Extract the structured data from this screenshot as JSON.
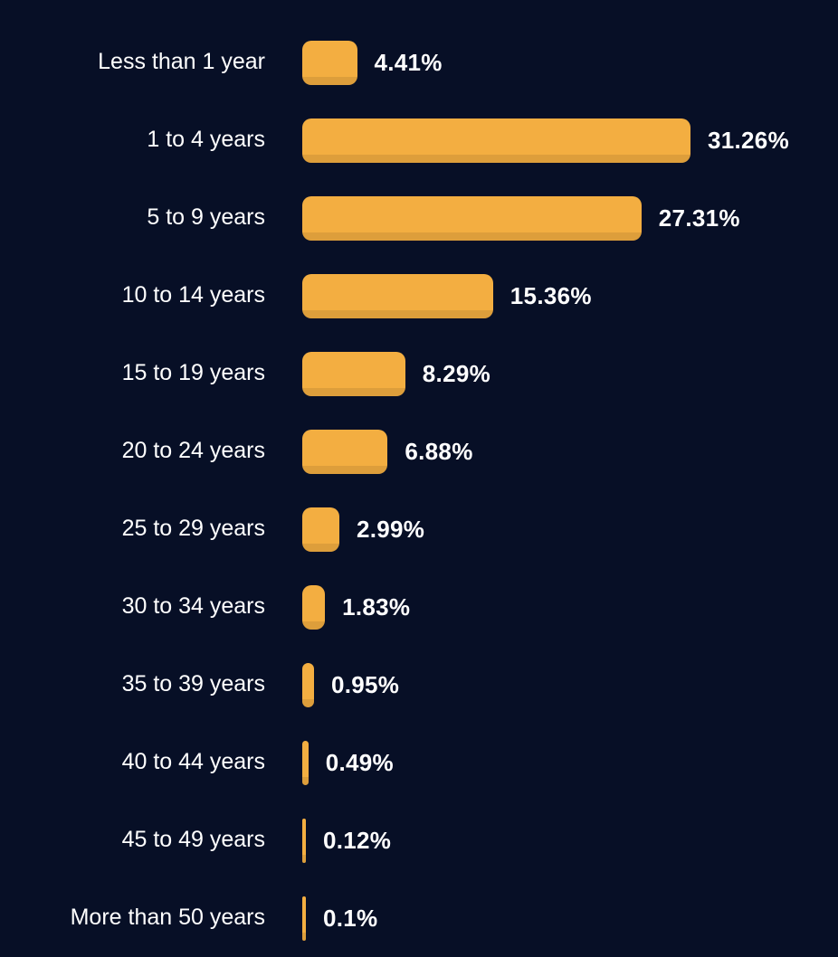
{
  "chart_data": {
    "type": "bar",
    "orientation": "horizontal",
    "title": "",
    "xlabel": "",
    "ylabel": "",
    "grid": false,
    "legend_position": "none",
    "xlim": [
      0,
      31.26
    ],
    "categories": [
      "Less than 1 year",
      "1 to 4 years",
      "5 to 9 years",
      "10 to 14 years",
      "15 to 19 years",
      "20 to 24 years",
      "25 to 29 years",
      "30 to 34 years",
      "35 to 39 years",
      "40 to 44 years",
      "45 to 49 years",
      "More than 50 years"
    ],
    "values": [
      4.41,
      31.26,
      27.31,
      15.36,
      8.29,
      6.88,
      2.99,
      1.83,
      0.95,
      0.49,
      0.12,
      0.1
    ],
    "value_labels": [
      "4.41%",
      "31.26%",
      "27.31%",
      "15.36%",
      "8.29%",
      "6.88%",
      "2.99%",
      "1.83%",
      "0.95%",
      "0.49%",
      "0.12%",
      "0.1%"
    ],
    "colors": {
      "background": "#070f26",
      "bar": "#f3ae41",
      "bar_bottom_shade": "#e6a63e",
      "text": "#ffffff"
    }
  }
}
